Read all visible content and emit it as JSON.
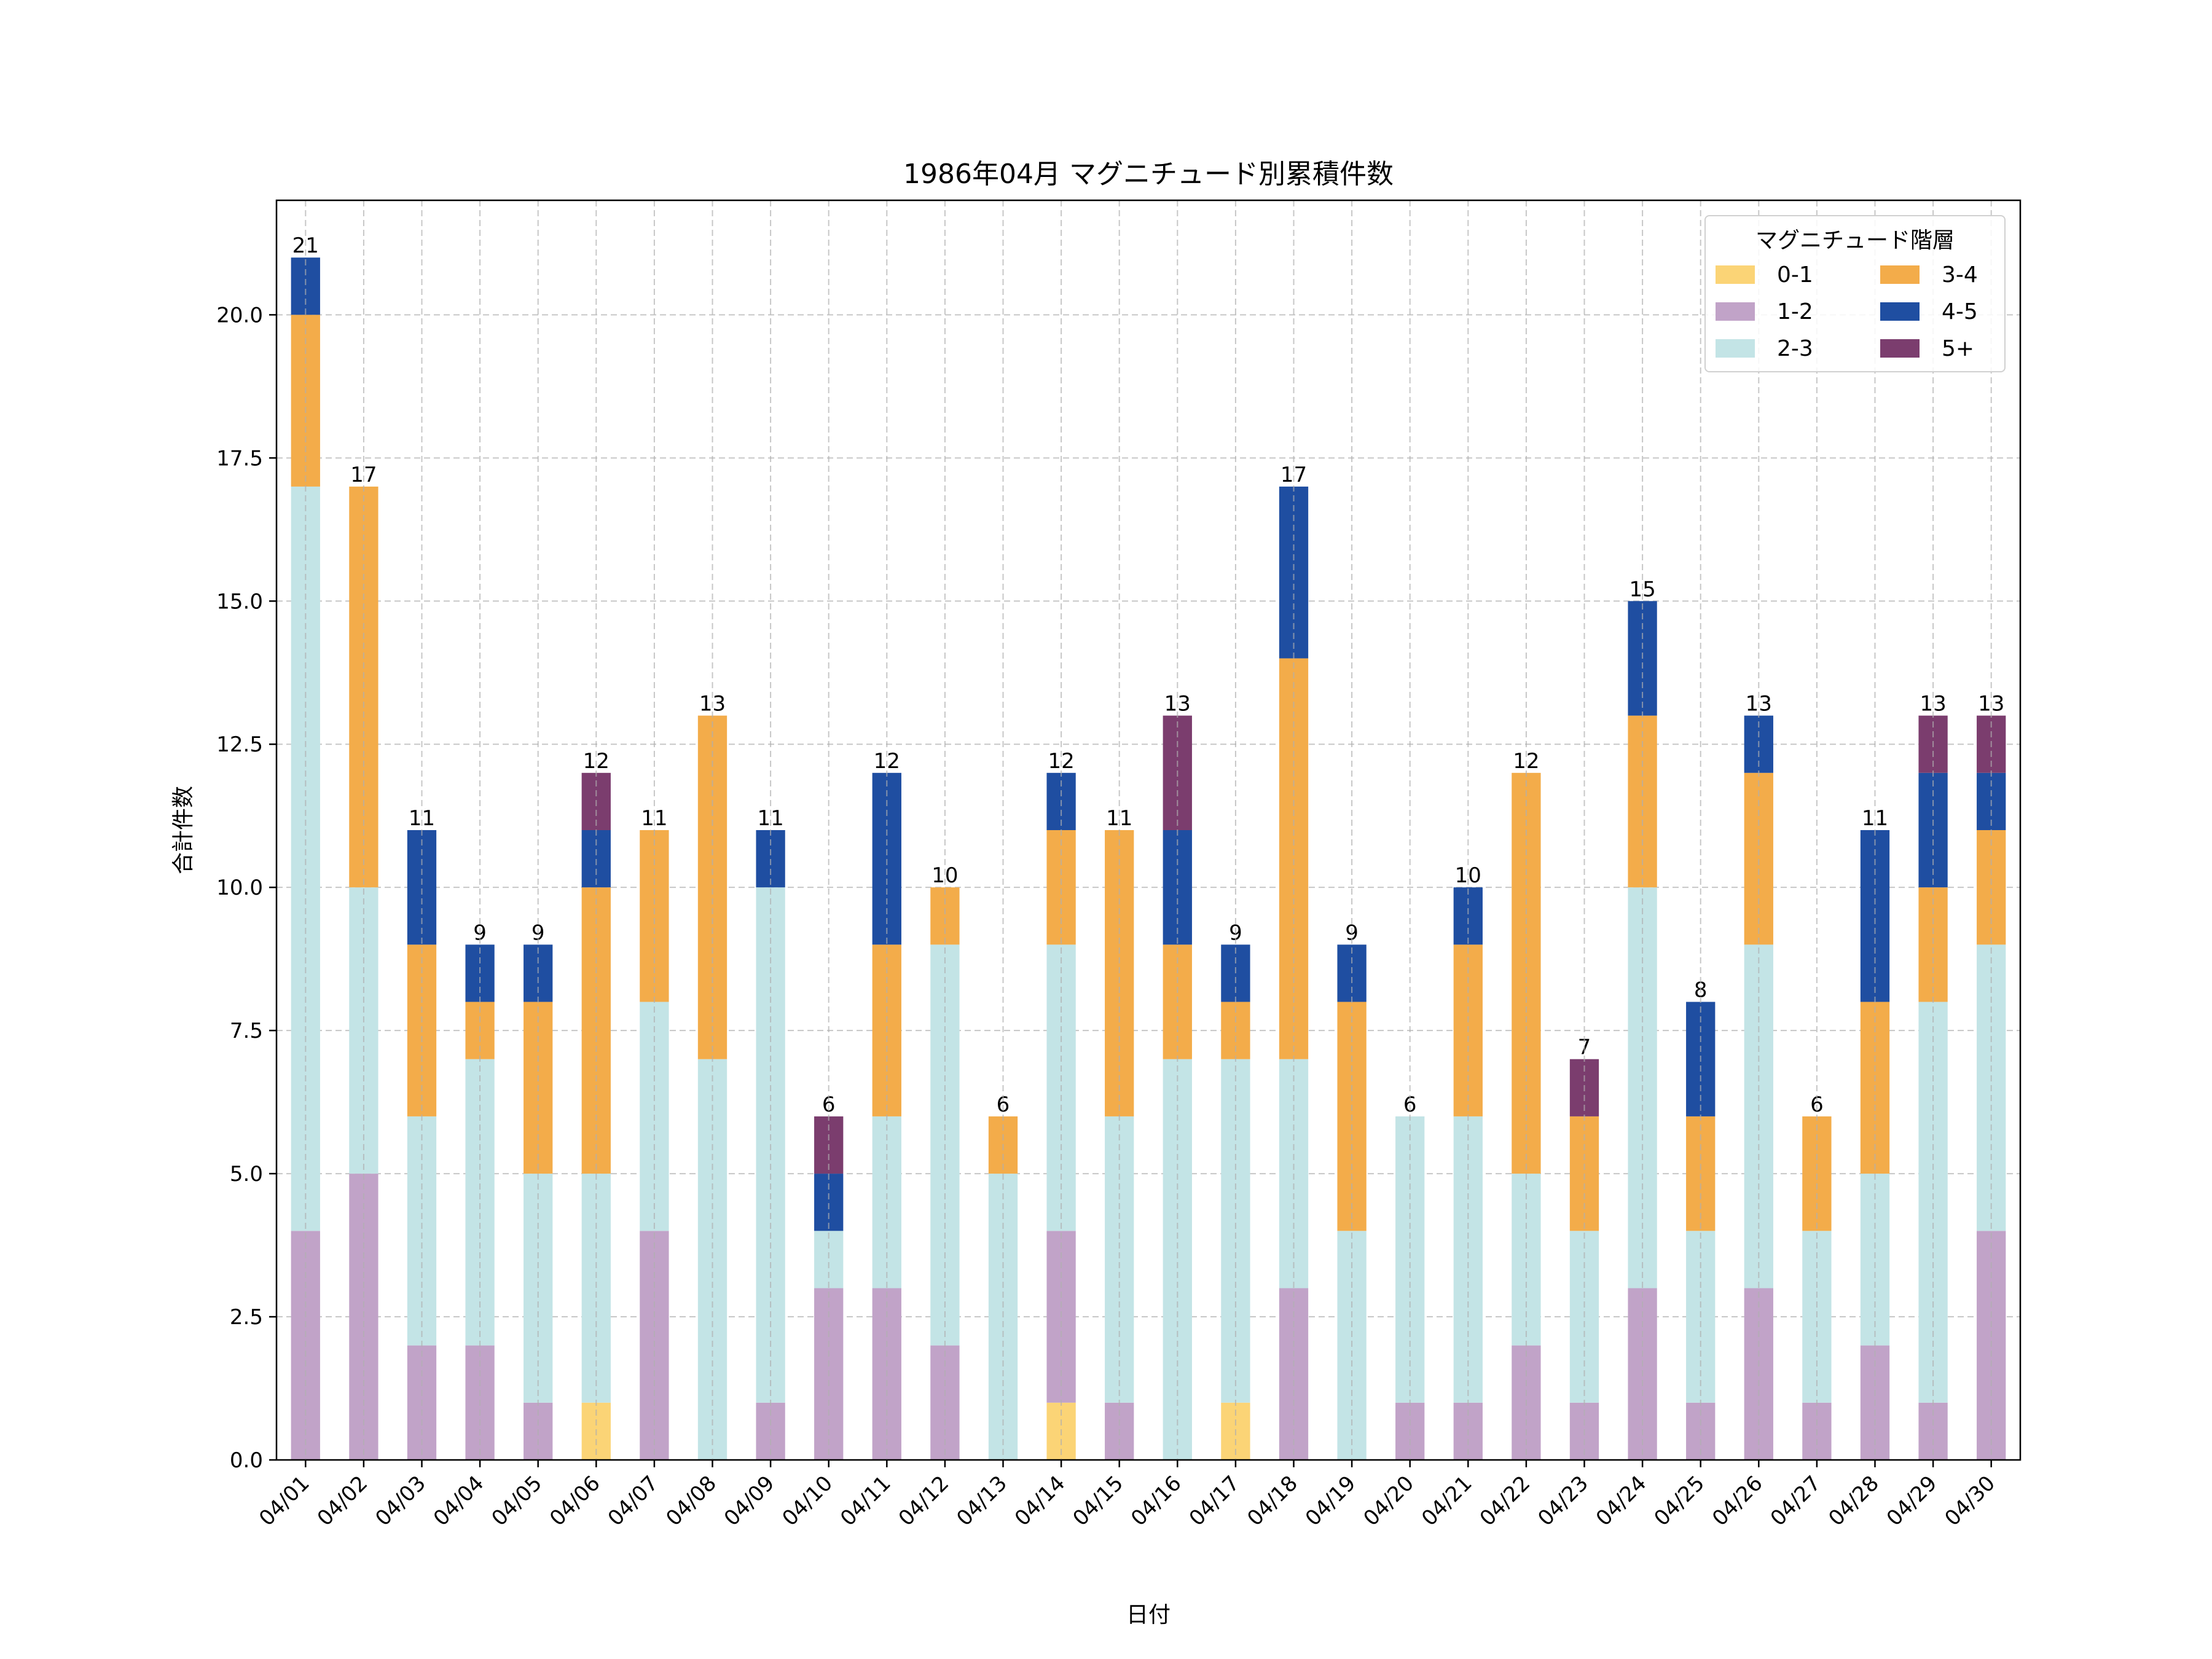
{
  "chart_data": {
    "type": "bar",
    "stacked": true,
    "title": "1986年04月 マグニチュード別累積件数",
    "xlabel": "日付",
    "ylabel": "合計件数",
    "ylim": [
      0,
      22
    ],
    "yticks": [
      0.0,
      2.5,
      5.0,
      7.5,
      10.0,
      12.5,
      15.0,
      17.5,
      20.0
    ],
    "ytick_labels": [
      "0.0",
      "2.5",
      "5.0",
      "7.5",
      "10.0",
      "12.5",
      "15.0",
      "17.5",
      "20.0"
    ],
    "grid": true,
    "categories": [
      "04/01",
      "04/02",
      "04/03",
      "04/04",
      "04/05",
      "04/06",
      "04/07",
      "04/08",
      "04/09",
      "04/10",
      "04/11",
      "04/12",
      "04/13",
      "04/14",
      "04/15",
      "04/16",
      "04/17",
      "04/18",
      "04/19",
      "04/20",
      "04/21",
      "04/22",
      "04/23",
      "04/24",
      "04/25",
      "04/26",
      "04/27",
      "04/28",
      "04/29",
      "04/30"
    ],
    "series": [
      {
        "name": "0-1",
        "color": "#FBD476",
        "values": [
          0,
          0,
          0,
          0,
          0,
          1,
          0,
          0,
          0,
          0,
          0,
          0,
          0,
          1,
          0,
          0,
          1,
          0,
          0,
          0,
          0,
          0,
          0,
          0,
          0,
          0,
          0,
          0,
          0,
          0
        ]
      },
      {
        "name": "1-2",
        "color": "#C1A3C8",
        "values": [
          4,
          5,
          2,
          2,
          1,
          0,
          4,
          0,
          1,
          3,
          3,
          2,
          0,
          3,
          1,
          0,
          0,
          3,
          0,
          1,
          1,
          2,
          1,
          3,
          1,
          3,
          1,
          2,
          1,
          4
        ]
      },
      {
        "name": "2-3",
        "color": "#C3E4E6",
        "values": [
          13,
          5,
          4,
          5,
          4,
          4,
          4,
          7,
          9,
          1,
          3,
          7,
          5,
          5,
          5,
          7,
          6,
          4,
          4,
          5,
          5,
          3,
          3,
          7,
          3,
          6,
          3,
          3,
          7,
          5
        ]
      },
      {
        "name": "3-4",
        "color": "#F3AC4A",
        "values": [
          3,
          7,
          3,
          1,
          3,
          5,
          3,
          6,
          0,
          0,
          3,
          1,
          1,
          2,
          5,
          2,
          1,
          7,
          4,
          0,
          3,
          7,
          2,
          3,
          2,
          3,
          2,
          3,
          2,
          2
        ]
      },
      {
        "name": "4-5",
        "color": "#1F4EA1",
        "values": [
          1,
          0,
          2,
          1,
          1,
          1,
          0,
          0,
          1,
          1,
          3,
          0,
          0,
          1,
          0,
          2,
          1,
          3,
          1,
          0,
          1,
          0,
          0,
          2,
          2,
          1,
          0,
          3,
          2,
          1
        ]
      },
      {
        "name": "5+",
        "color": "#7B3D6E",
        "values": [
          0,
          0,
          0,
          0,
          0,
          1,
          0,
          0,
          0,
          1,
          0,
          0,
          0,
          0,
          0,
          2,
          0,
          0,
          0,
          0,
          0,
          0,
          1,
          0,
          0,
          0,
          0,
          0,
          1,
          1
        ]
      }
    ],
    "totals": [
      21,
      17,
      11,
      9,
      9,
      12,
      11,
      13,
      11,
      6,
      12,
      10,
      6,
      12,
      11,
      13,
      9,
      17,
      9,
      6,
      10,
      12,
      7,
      15,
      8,
      13,
      6,
      11,
      13,
      13
    ],
    "legend": {
      "title": "マグニチュード階層",
      "position": "top-right",
      "entries": [
        "0-1",
        "1-2",
        "2-3",
        "3-4",
        "4-5",
        "5+"
      ]
    }
  }
}
